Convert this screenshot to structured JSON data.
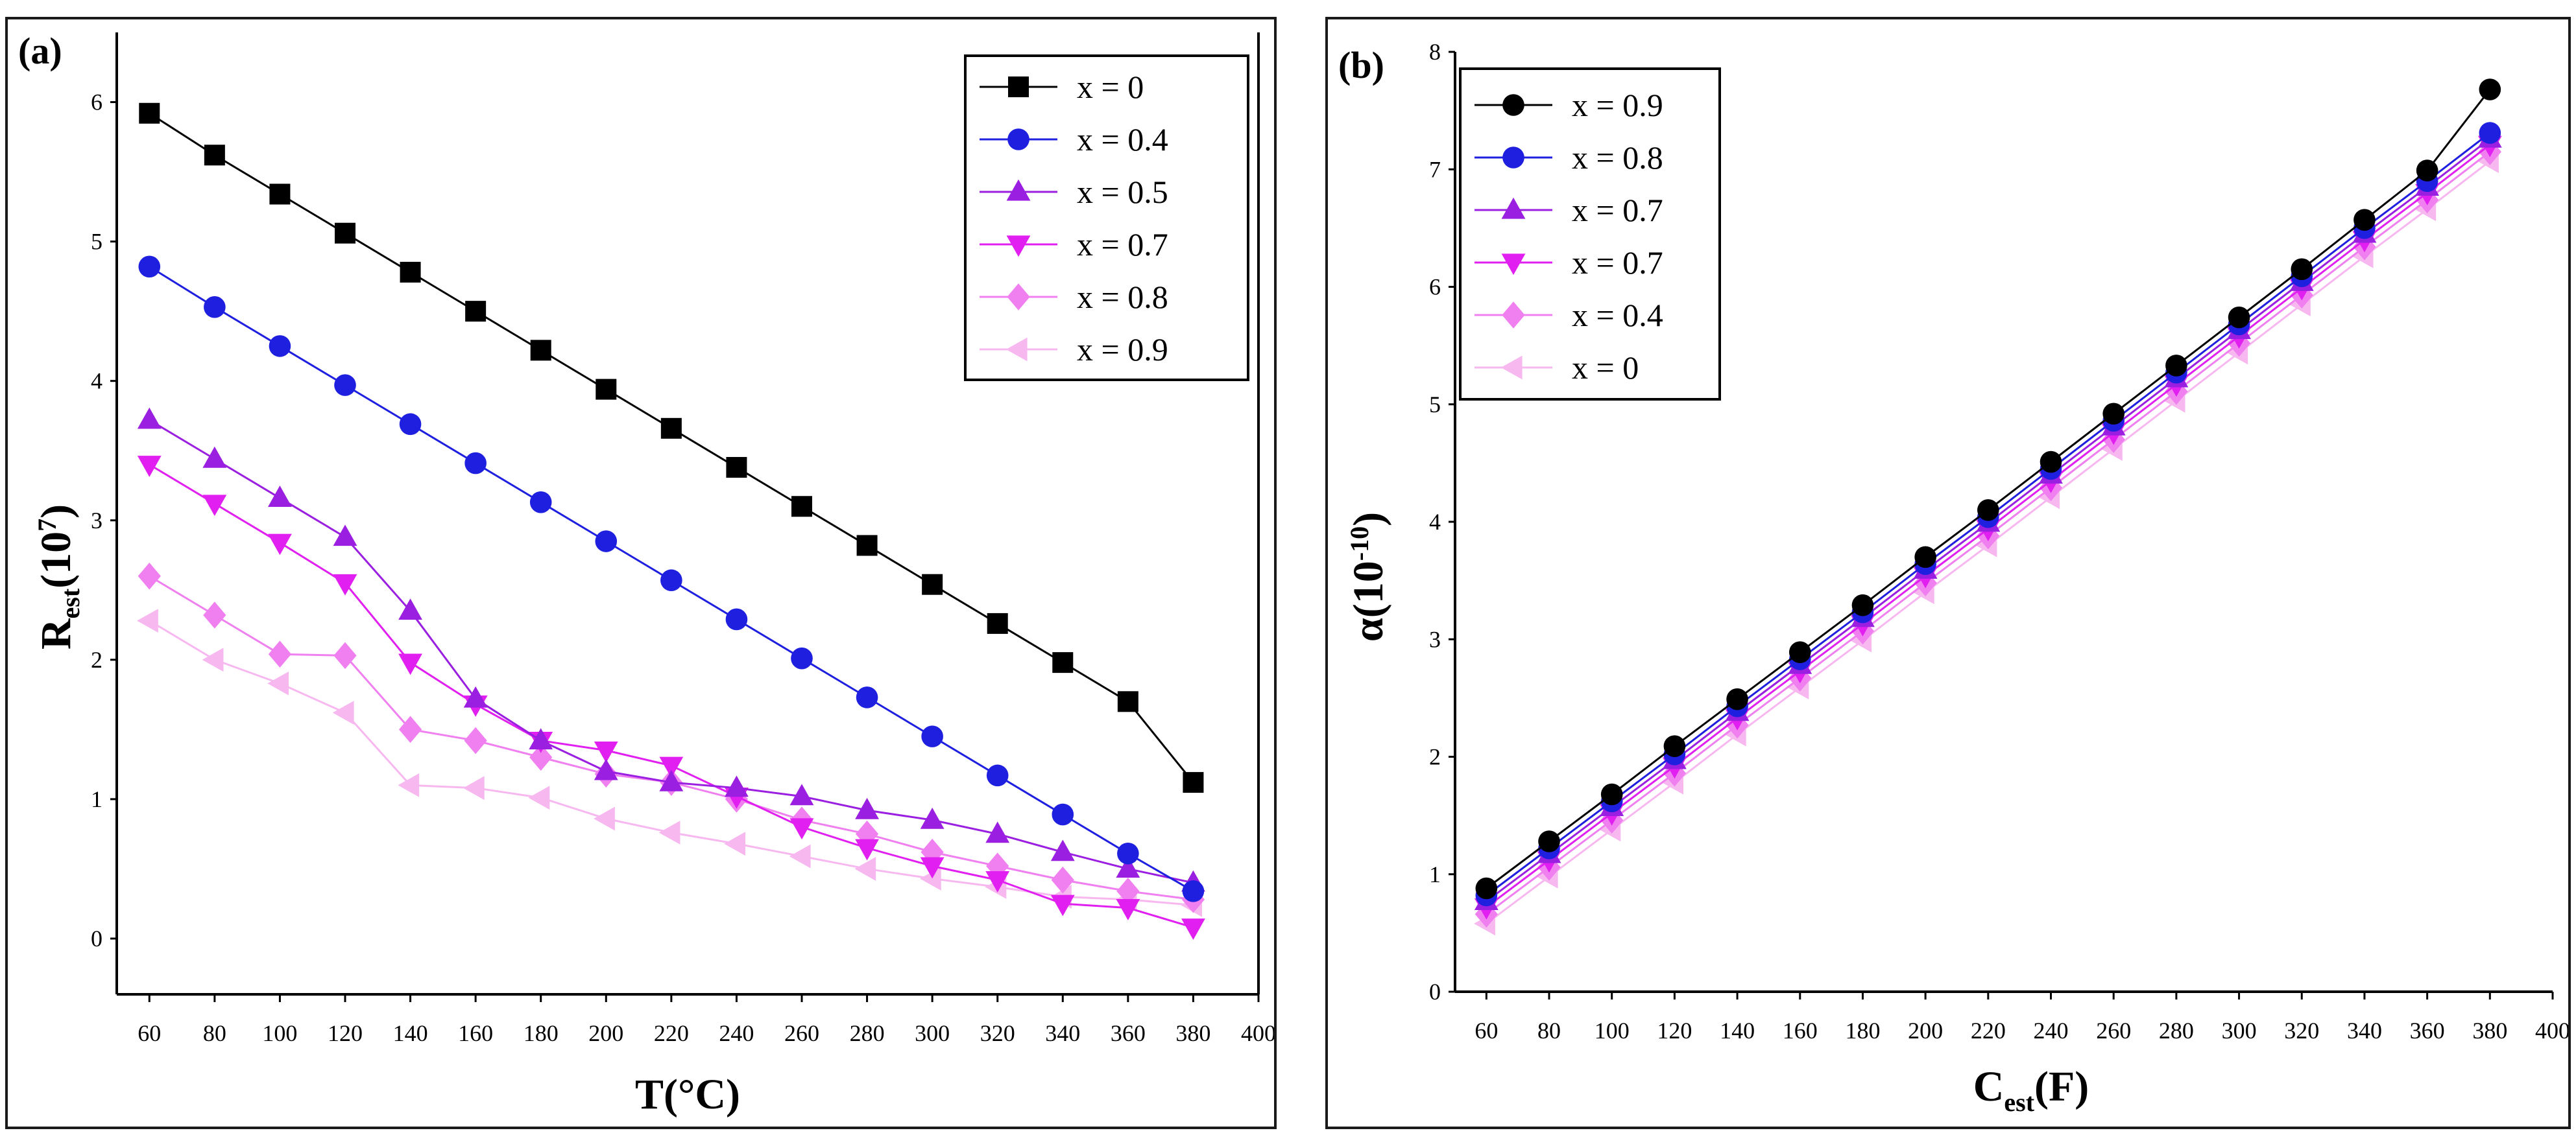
{
  "panels": {
    "a": {
      "label": "(a)"
    },
    "b": {
      "label": "(b)"
    }
  },
  "chart_data": [
    {
      "type": "line",
      "panel": "a",
      "xlabel": {
        "main": "T(°C)"
      },
      "ylabel": {
        "main": "R",
        "sub": "est",
        "rest": "(10",
        "sup": "7",
        "close": ")"
      },
      "xlim": [
        50,
        400
      ],
      "ylim": [
        -0.4,
        6.5
      ],
      "x_ticks": [
        60,
        80,
        100,
        120,
        140,
        160,
        180,
        200,
        220,
        240,
        260,
        280,
        300,
        320,
        340,
        360,
        380,
        400
      ],
      "y_ticks": [
        0,
        1,
        2,
        3,
        4,
        5,
        6
      ],
      "x": [
        60,
        80,
        100,
        120,
        140,
        160,
        180,
        200,
        220,
        240,
        260,
        280,
        300,
        320,
        340,
        360,
        380
      ],
      "legend_position": "top-right",
      "series": [
        {
          "name": "x = 0",
          "color": "#000000",
          "marker": "square",
          "values": [
            5.92,
            5.62,
            5.34,
            5.06,
            4.78,
            4.5,
            4.22,
            3.94,
            3.66,
            3.38,
            3.1,
            2.82,
            2.54,
            2.26,
            1.98,
            1.7,
            1.12
          ]
        },
        {
          "name": "x  = 0.4",
          "color": "#1f1fe0",
          "marker": "circle",
          "values": [
            4.82,
            4.53,
            4.25,
            3.97,
            3.69,
            3.41,
            3.13,
            2.85,
            2.57,
            2.29,
            2.01,
            1.73,
            1.45,
            1.17,
            0.89,
            0.61,
            0.34
          ]
        },
        {
          "name": "x  = 0.5",
          "color": "#9a1fe0",
          "marker": "triangle-up",
          "values": [
            3.72,
            3.44,
            3.16,
            2.88,
            2.35,
            1.72,
            1.42,
            1.2,
            1.12,
            1.08,
            1.02,
            0.92,
            0.85,
            0.75,
            0.62,
            0.5,
            0.4
          ]
        },
        {
          "name": "x  = 0.7",
          "color": "#e01ff0",
          "marker": "triangle-down",
          "values": [
            3.4,
            3.12,
            2.84,
            2.55,
            1.98,
            1.68,
            1.42,
            1.35,
            1.24,
            1.02,
            0.8,
            0.65,
            0.52,
            0.42,
            0.25,
            0.22,
            0.08
          ]
        },
        {
          "name": "x  = 0.8",
          "color": "#f07ff0",
          "marker": "diamond",
          "values": [
            2.6,
            2.32,
            2.04,
            2.03,
            1.5,
            1.42,
            1.3,
            1.18,
            1.12,
            1.0,
            0.85,
            0.75,
            0.62,
            0.52,
            0.42,
            0.34,
            0.28
          ]
        },
        {
          "name": "x  = 0.9",
          "color": "#f7b8f0",
          "marker": "triangle-left",
          "values": [
            2.28,
            2.0,
            1.83,
            1.62,
            1.1,
            1.08,
            1.01,
            0.86,
            0.76,
            0.68,
            0.59,
            0.5,
            0.43,
            0.37,
            0.3,
            0.28,
            0.24
          ]
        }
      ]
    },
    {
      "type": "line",
      "panel": "b",
      "xlabel": {
        "main": "C",
        "sub": "est",
        "rest": "(F)"
      },
      "ylabel": {
        "main": "α(10",
        "sup": "-10",
        "close": ")"
      },
      "xlim": [
        50,
        400
      ],
      "ylim": [
        0,
        8
      ],
      "x_ticks": [
        60,
        80,
        100,
        120,
        140,
        160,
        180,
        200,
        220,
        240,
        260,
        280,
        300,
        320,
        340,
        360,
        380,
        400
      ],
      "y_ticks": [
        0,
        1,
        2,
        3,
        4,
        5,
        6,
        7,
        8
      ],
      "x": [
        60,
        80,
        100,
        120,
        140,
        160,
        180,
        200,
        220,
        240,
        260,
        280,
        300,
        320,
        340,
        360,
        380
      ],
      "legend_position": "top-left",
      "series": [
        {
          "name": "x = 0.9",
          "color": "#000000",
          "marker": "circle",
          "values": [
            0.88,
            1.28,
            1.68,
            2.09,
            2.49,
            2.89,
            3.29,
            3.7,
            4.1,
            4.51,
            4.92,
            5.33,
            5.74,
            6.15,
            6.57,
            6.99,
            7.68
          ]
        },
        {
          "name": "x  = 0.8",
          "color": "#1f1fe0",
          "marker": "circle",
          "values": [
            0.82,
            1.22,
            1.62,
            2.02,
            2.43,
            2.83,
            3.23,
            3.64,
            4.04,
            4.45,
            4.86,
            5.27,
            5.68,
            6.09,
            6.5,
            6.9,
            7.31
          ]
        },
        {
          "name": "x  = 0.7",
          "color": "#9a1fe0",
          "marker": "triangle-up",
          "values": [
            0.77,
            1.17,
            1.57,
            1.97,
            2.38,
            2.78,
            3.18,
            3.59,
            3.99,
            4.4,
            4.81,
            5.22,
            5.63,
            6.04,
            6.45,
            6.85,
            7.26
          ]
        },
        {
          "name": "x  = 0.7",
          "color": "#e01ff0",
          "marker": "triangle-down",
          "values": [
            0.72,
            1.12,
            1.52,
            1.92,
            2.33,
            2.73,
            3.13,
            3.54,
            3.94,
            4.35,
            4.76,
            5.17,
            5.58,
            5.99,
            6.4,
            6.8,
            7.21
          ]
        },
        {
          "name": "x  = 0.4",
          "color": "#f07ff0",
          "marker": "diamond",
          "values": [
            0.66,
            1.06,
            1.46,
            1.86,
            2.27,
            2.67,
            3.07,
            3.48,
            3.88,
            4.29,
            4.7,
            5.11,
            5.52,
            5.93,
            6.34,
            6.74,
            7.15
          ]
        },
        {
          "name": "x  = 0",
          "color": "#f7b8f0",
          "marker": "triangle-left",
          "values": [
            0.58,
            0.98,
            1.38,
            1.78,
            2.19,
            2.59,
            2.99,
            3.4,
            3.8,
            4.21,
            4.62,
            5.03,
            5.44,
            5.85,
            6.26,
            6.66,
            7.07
          ]
        }
      ]
    }
  ]
}
